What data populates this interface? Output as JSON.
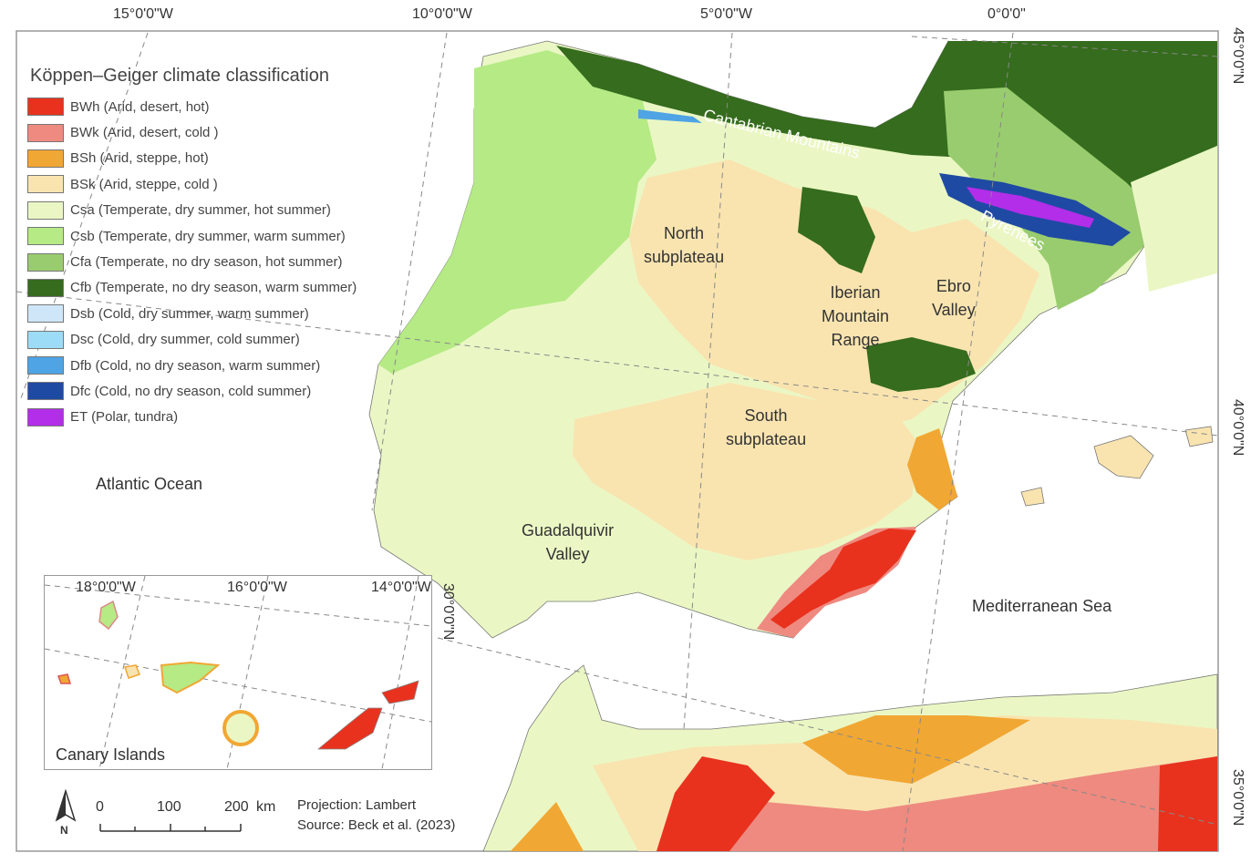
{
  "title": "Köppen–Geiger climate classification",
  "legend": [
    {
      "code": "BWh",
      "label": "BWh  (Arid, desert, hot)",
      "color": "#e8321e"
    },
    {
      "code": "BWk",
      "label": "BWk  (Arid, desert, cold )",
      "color": "#ee8a80"
    },
    {
      "code": "BSh",
      "label": "BSh (Arid, steppe, hot)",
      "color": "#f1a733"
    },
    {
      "code": "BSk",
      "label": "BSk  (Arid, steppe, cold )",
      "color": "#f9e4b0"
    },
    {
      "code": "Csa",
      "label": "Csa (Temperate, dry summer, hot summer)",
      "color": "#eaf7c4"
    },
    {
      "code": "Csb",
      "label": "Csb (Temperate, dry summer, warm summer)",
      "color": "#b5ea85"
    },
    {
      "code": "Cfa",
      "label": "Cfa (Temperate, no dry season, hot summer)",
      "color": "#99cc6e"
    },
    {
      "code": "Cfb",
      "label": "Cfb (Temperate, no dry season, warm summer)",
      "color": "#356c1d"
    },
    {
      "code": "Dsb",
      "label": "Dsb (Cold, dry summer, warm summer)",
      "color": "#cfe6f8"
    },
    {
      "code": "Dsc",
      "label": "Dsc (Cold, dry summer, cold summer)",
      "color": "#9cdcf7"
    },
    {
      "code": "Dfb",
      "label": "Dfb (Cold, no dry season, warm summer)",
      "color": "#4ea4e4"
    },
    {
      "code": "Dfc",
      "label": "Dfc (Cold, no dry season, cold summer)",
      "color": "#1f4aa3"
    },
    {
      "code": "ET",
      "label": "ET (Polar, tundra)",
      "color": "#b22ee8"
    }
  ],
  "graticule": {
    "top": [
      "15°0'0\"W",
      "10°0'0\"W",
      "5°0'0\"W",
      "0°0'0\""
    ],
    "right": [
      "45°0'0\"N",
      "40°0'0\"N",
      "35°0'0\"N"
    ]
  },
  "places": {
    "atlantic": "Atlantic Ocean",
    "mediterranean": "Mediterranean Sea",
    "cantabrian": "Cantabrian Mountains",
    "pyrenees": "Pyrenees",
    "north_subplateau": "North\nsubplateau",
    "south_subplateau": "South\nsubplateau",
    "iberian_range": "Iberian\nMountain\nRange",
    "ebro_valley": "Ebro\nValley",
    "guadalquivir": "Guadalquivir\nValley"
  },
  "inset": {
    "title": "Canary Islands",
    "lon_labels": [
      "18°0'0\"W",
      "16°0'0\"W",
      "14°0'0\"W"
    ],
    "lat_label": "30°0'0\"N"
  },
  "scale_bar": {
    "labels": [
      "0",
      "100",
      "200"
    ],
    "unit": "km"
  },
  "north_arrow": "N",
  "projection": "Projection: Lambert",
  "source": "Source: Beck et al. (2023)"
}
